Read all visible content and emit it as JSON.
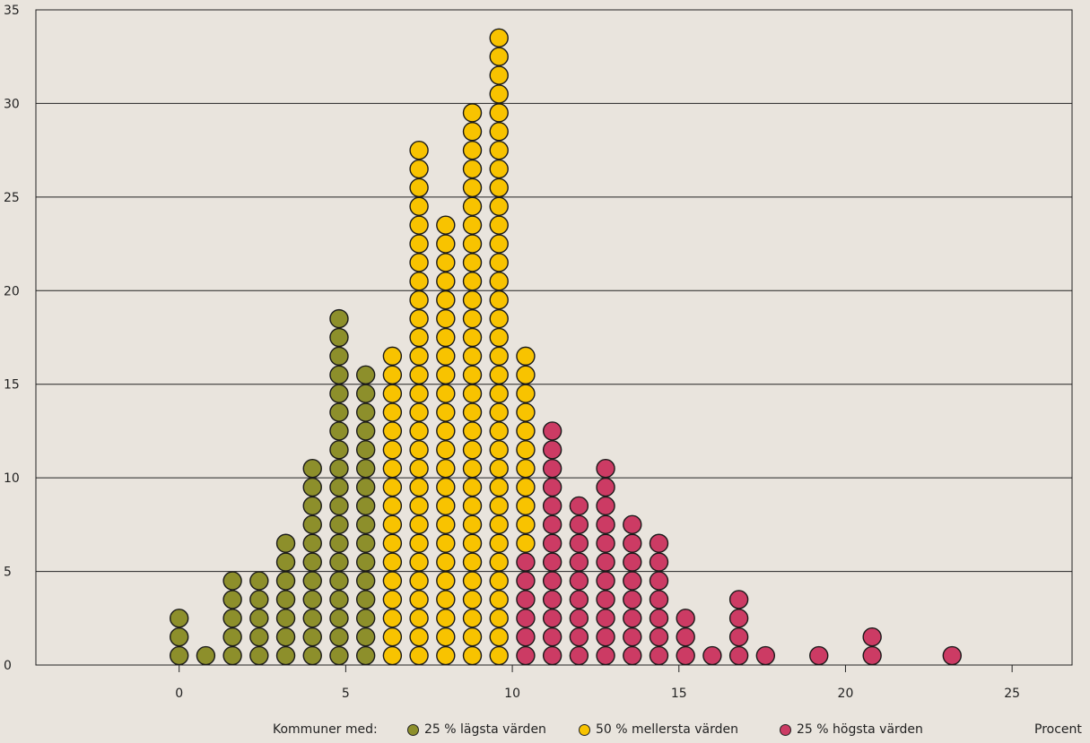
{
  "chart_data": {
    "type": "scatter",
    "subtype": "dot-plot",
    "x_ticks": [
      "0",
      "5",
      "10",
      "15",
      "20",
      "25"
    ],
    "y_ticks": [
      "0",
      "5",
      "10",
      "15",
      "20",
      "25",
      "30",
      "35"
    ],
    "xlim": [
      -4.3,
      26.8
    ],
    "ylim": [
      0,
      35
    ],
    "grid": "horizontal",
    "xlabel": "Procent",
    "ylabel": "",
    "legend_position": "bottom",
    "legend_prefix": "Kommuner med:",
    "series": [
      {
        "name": "25 % lägsta värden",
        "color": "#8d8f2b",
        "points": [
          {
            "x": 0.0,
            "count": 3
          },
          {
            "x": 0.8,
            "count": 1
          },
          {
            "x": 1.6,
            "count": 5
          },
          {
            "x": 2.4,
            "count": 5
          },
          {
            "x": 3.2,
            "count": 7
          },
          {
            "x": 4.0,
            "count": 11
          },
          {
            "x": 4.8,
            "count": 19
          },
          {
            "x": 5.6,
            "count": 16
          }
        ]
      },
      {
        "name": "50 % mellersta värden",
        "color": "#f8c300",
        "points": [
          {
            "x": 6.4,
            "count": 17
          },
          {
            "x": 7.2,
            "count": 28
          },
          {
            "x": 8.0,
            "count": 24
          },
          {
            "x": 8.8,
            "count": 30
          },
          {
            "x": 9.6,
            "count": 34
          },
          {
            "x": 10.4,
            "count": 11,
            "from": 6
          }
        ]
      },
      {
        "name": "25 % högsta värden",
        "color": "#cc3b64",
        "points": [
          {
            "x": 10.4,
            "count": 6
          },
          {
            "x": 11.2,
            "count": 13
          },
          {
            "x": 12.0,
            "count": 9
          },
          {
            "x": 12.8,
            "count": 11
          },
          {
            "x": 13.6,
            "count": 8
          },
          {
            "x": 14.4,
            "count": 7
          },
          {
            "x": 15.2,
            "count": 3
          },
          {
            "x": 16.0,
            "count": 1
          },
          {
            "x": 16.8,
            "count": 4
          },
          {
            "x": 17.6,
            "count": 1
          },
          {
            "x": 19.2,
            "count": 1
          },
          {
            "x": 20.8,
            "count": 2
          },
          {
            "x": 23.2,
            "count": 1
          }
        ]
      }
    ]
  }
}
